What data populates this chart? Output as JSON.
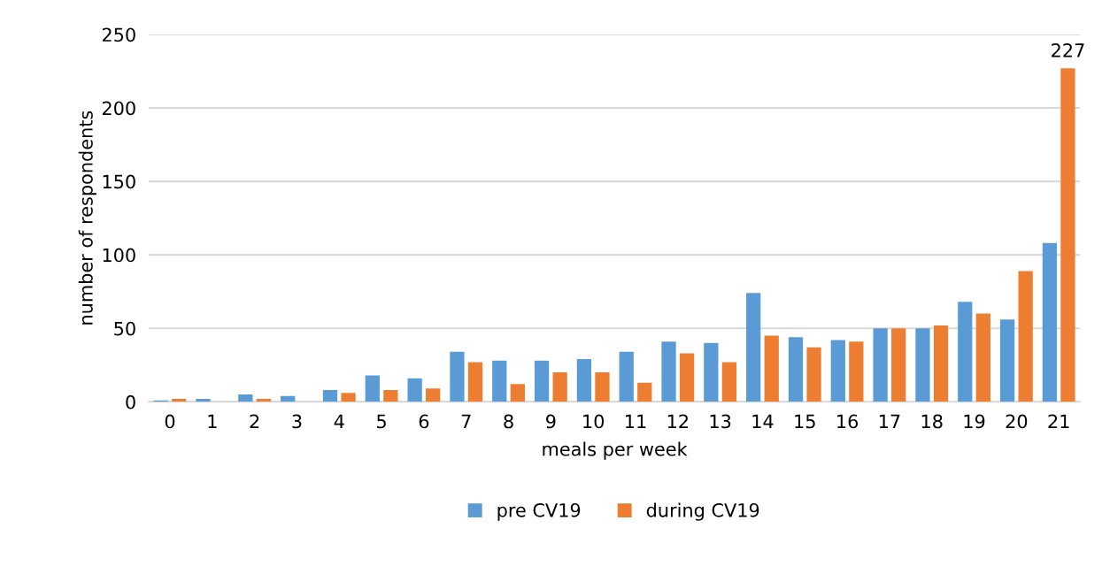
{
  "chart_data": {
    "type": "bar",
    "xlabel": "meals per week",
    "ylabel": "number of respondents",
    "categories": [
      "0",
      "1",
      "2",
      "3",
      "4",
      "5",
      "6",
      "7",
      "8",
      "9",
      "10",
      "11",
      "12",
      "13",
      "14",
      "15",
      "16",
      "17",
      "18",
      "19",
      "20",
      "21"
    ],
    "series": [
      {
        "name": "pre CV19",
        "color": "#5b9bd5",
        "values": [
          1,
          2,
          5,
          4,
          8,
          18,
          16,
          34,
          28,
          28,
          29,
          34,
          41,
          40,
          74,
          44,
          42,
          50,
          50,
          68,
          56,
          108
        ]
      },
      {
        "name": "during CV19",
        "color": "#ed7d31",
        "values": [
          2,
          0,
          2,
          0,
          6,
          8,
          9,
          27,
          12,
          20,
          20,
          13,
          33,
          27,
          45,
          37,
          41,
          50,
          52,
          60,
          89,
          227
        ],
        "value_labels": [
          null,
          null,
          null,
          null,
          null,
          null,
          null,
          null,
          null,
          null,
          null,
          null,
          null,
          null,
          null,
          null,
          null,
          null,
          null,
          null,
          null,
          "227"
        ]
      }
    ],
    "ylim": [
      0,
      250
    ],
    "yticks": [
      0,
      50,
      100,
      150,
      200,
      250
    ],
    "grid": "y",
    "legend": "bottom"
  }
}
